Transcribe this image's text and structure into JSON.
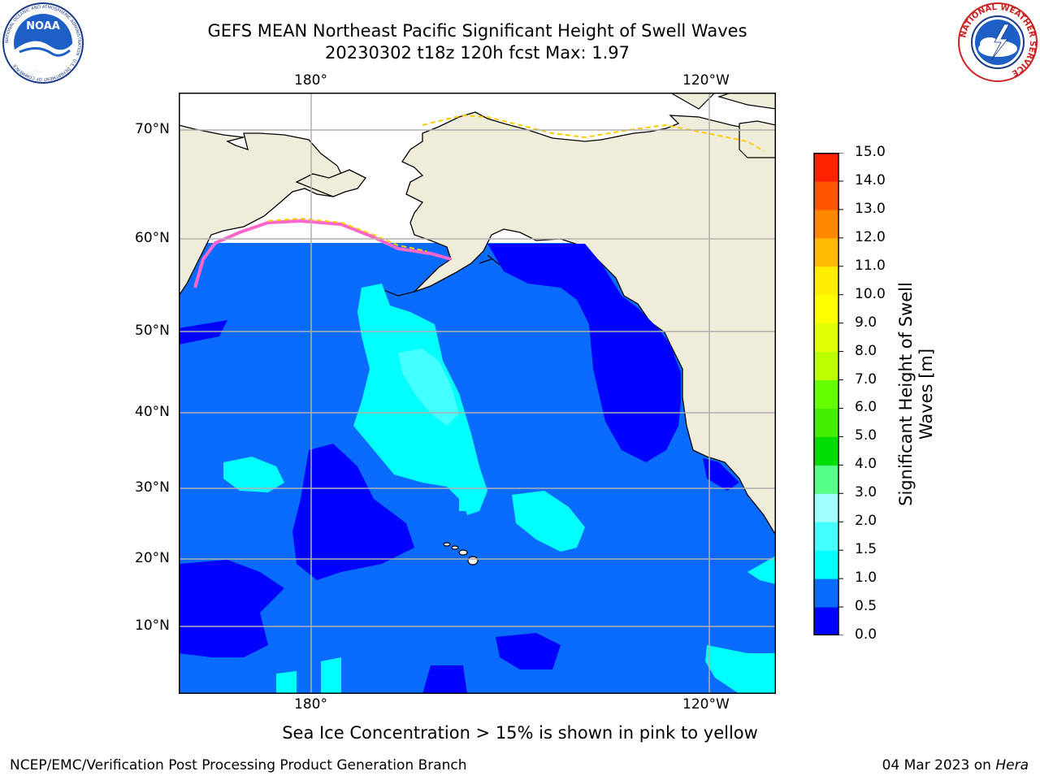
{
  "header": {
    "title_line1": "GEFS MEAN Northeast Pacific Significant Height of Swell Waves",
    "title_line2": "20230302 t18z 120h fcst   Max: 1.97"
  },
  "logos": {
    "left": {
      "name": "noaa-logo",
      "text": "NOAA",
      "ring_text": "NATIONAL OCEANIC AND ATMOSPHERIC ADMINISTRATION · U.S. DEPARTMENT OF COMMERCE"
    },
    "right": {
      "name": "nws-logo",
      "ring_text": "NATIONAL WEATHER SERVICE"
    }
  },
  "map": {
    "lon_labels_top": [
      "180°",
      "120°W"
    ],
    "lon_labels_bottom": [
      "180°",
      "120°W"
    ],
    "lat_labels": [
      "70°N",
      "60°N",
      "50°N",
      "40°N",
      "30°N",
      "20°N",
      "10°N"
    ],
    "colors": {
      "land": "#efedd9",
      "ocean_0_05": "#0000ff",
      "ocean_05_10": "#0a6cff",
      "ocean_10_15": "#00ffff",
      "ocean_15_20": "#40ffff",
      "ice_pink": "#ff66cc",
      "ice_yellow": "#ffcc00",
      "grid": "#b0b0b0"
    }
  },
  "colorbar": {
    "label_line1": "Significant Height of Swell",
    "label_line2": "Waves [m]",
    "ticks": [
      "0.0",
      "0.5",
      "1.0",
      "1.5",
      "2.0",
      "3.0",
      "4.0",
      "5.0",
      "6.0",
      "7.0",
      "8.0",
      "9.0",
      "10.0",
      "11.0",
      "12.0",
      "13.0",
      "14.0",
      "15.0"
    ],
    "colors": [
      "#0000ff",
      "#0a6cff",
      "#00ffff",
      "#44ffff",
      "#a0ffff",
      "#55ff88",
      "#00dd00",
      "#44ee00",
      "#66ff00",
      "#bbff00",
      "#e0ff00",
      "#ffff00",
      "#ffee00",
      "#ffbb00",
      "#ff8800",
      "#ff5500",
      "#ff2200",
      "#ff0000"
    ]
  },
  "footer": {
    "note": "Sea Ice Concentration > 15% is shown in pink to yellow",
    "left": "NCEP/EMC/Verification Post Processing Product Generation Branch",
    "right_date": "04 Mar 2023 on ",
    "right_host": "Hera"
  }
}
